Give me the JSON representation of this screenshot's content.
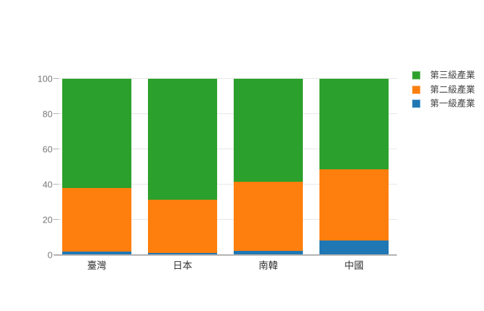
{
  "chart_data": {
    "type": "bar",
    "stacked": true,
    "title": "",
    "xlabel": "",
    "ylabel": "",
    "categories": [
      "臺灣",
      "日本",
      "南韓",
      "中國"
    ],
    "series": [
      {
        "name": "第一級產業",
        "color": "#1f77b4",
        "values": [
          1.8,
          1.1,
          2.2,
          7.9
        ]
      },
      {
        "name": "第二級產業",
        "color": "#ff7f0e",
        "values": [
          36.0,
          30.1,
          39.3,
          40.5
        ]
      },
      {
        "name": "第三級產業",
        "color": "#2ca02c",
        "values": [
          62.2,
          68.8,
          58.5,
          51.6
        ]
      }
    ],
    "ylim": [
      0,
      100
    ],
    "yticks": [
      0,
      20,
      40,
      60,
      80,
      100
    ],
    "grid": true,
    "legend_position": "top-right",
    "legend_order_top_to_bottom": [
      "第三級產業",
      "第二級產業",
      "第一級產業"
    ]
  },
  "colors": {
    "background": "#ffffff",
    "grid_line": "#e6e6e6",
    "axis_line": "#b0b0b0",
    "y_tick_text": "#777777",
    "x_tick_text": "#333333",
    "legend_text": "#444444",
    "series_first": "#1f77b4",
    "series_second": "#ff7f0e",
    "series_third": "#2ca02c"
  }
}
